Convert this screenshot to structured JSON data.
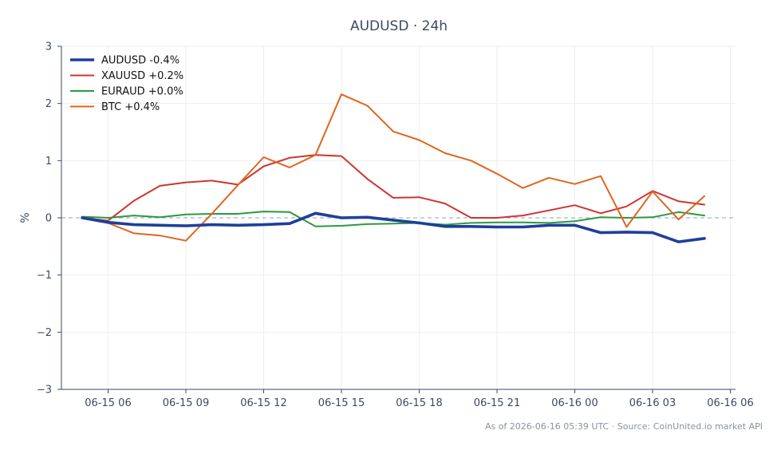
{
  "chart_data": {
    "type": "line",
    "title": "AUDUSD · 24h",
    "ylabel": "%",
    "xlabel": "",
    "ylim": [
      -3,
      3
    ],
    "yticks": [
      3,
      2,
      1,
      0,
      -1,
      -2,
      -3
    ],
    "ytick_labels": [
      "3",
      "2",
      "1",
      "0",
      "−1",
      "−2",
      "−3"
    ],
    "xlim": [
      1.2,
      27.2
    ],
    "xticks": [
      3,
      6,
      9,
      12,
      15,
      18,
      21,
      24,
      27,
      30
    ],
    "xtick_labels": [
      "06-15 06",
      "06-15 09",
      "06-15 12",
      "06-15 15",
      "06-15 18",
      "06-15 21",
      "06-16 00",
      "06-16 03",
      "06-16 06"
    ],
    "xtick_positions": [
      3,
      6,
      9,
      12,
      15,
      18,
      21,
      24,
      27
    ],
    "x_hours": [
      2,
      3,
      4,
      5,
      6,
      7,
      8,
      9,
      10,
      11,
      12,
      13,
      14,
      15,
      16,
      17,
      18,
      19,
      20,
      21,
      22,
      23,
      24,
      25,
      26
    ],
    "grid": true,
    "zero_line": true,
    "legend_position": "top-left",
    "series": [
      {
        "name": "AUDUSD -0.4%",
        "color": "#1f3f99",
        "emphasis": true,
        "values": [
          0.0,
          -0.08,
          -0.12,
          -0.13,
          -0.14,
          -0.12,
          -0.13,
          -0.12,
          -0.1,
          0.08,
          0.0,
          0.01,
          -0.04,
          -0.09,
          -0.15,
          -0.15,
          -0.16,
          -0.16,
          -0.13,
          -0.13,
          -0.26,
          -0.25,
          -0.26,
          -0.42,
          -0.36
        ]
      },
      {
        "name": "XAUUSD +0.2%",
        "color": "#cf3431",
        "values": [
          0.0,
          -0.05,
          0.3,
          0.56,
          0.62,
          0.65,
          0.58,
          0.9,
          1.05,
          1.1,
          1.08,
          0.68,
          0.35,
          0.36,
          0.25,
          0.0,
          0.0,
          0.04,
          0.13,
          0.22,
          0.08,
          0.2,
          0.47,
          0.29,
          0.23
        ]
      },
      {
        "name": "EURAUD +0.0%",
        "color": "#2b9a3f",
        "values": [
          0.02,
          0.0,
          0.04,
          0.01,
          0.06,
          0.07,
          0.07,
          0.11,
          0.1,
          -0.15,
          -0.14,
          -0.11,
          -0.1,
          -0.09,
          -0.12,
          -0.09,
          -0.08,
          -0.08,
          -0.09,
          -0.06,
          0.01,
          0.0,
          0.01,
          0.1,
          0.04
        ]
      },
      {
        "name": "BTC +0.4%",
        "color": "#e06520",
        "values": [
          0.0,
          -0.09,
          -0.27,
          -0.31,
          -0.4,
          0.07,
          0.57,
          1.06,
          0.88,
          1.1,
          2.16,
          1.96,
          1.51,
          1.36,
          1.13,
          1.0,
          0.77,
          0.52,
          0.7,
          0.59,
          0.73,
          -0.16,
          0.46,
          -0.03,
          0.38
        ]
      }
    ],
    "footer": "As of 2026-06-16 05:39 UTC · Source: CoinUnited.io market API"
  }
}
